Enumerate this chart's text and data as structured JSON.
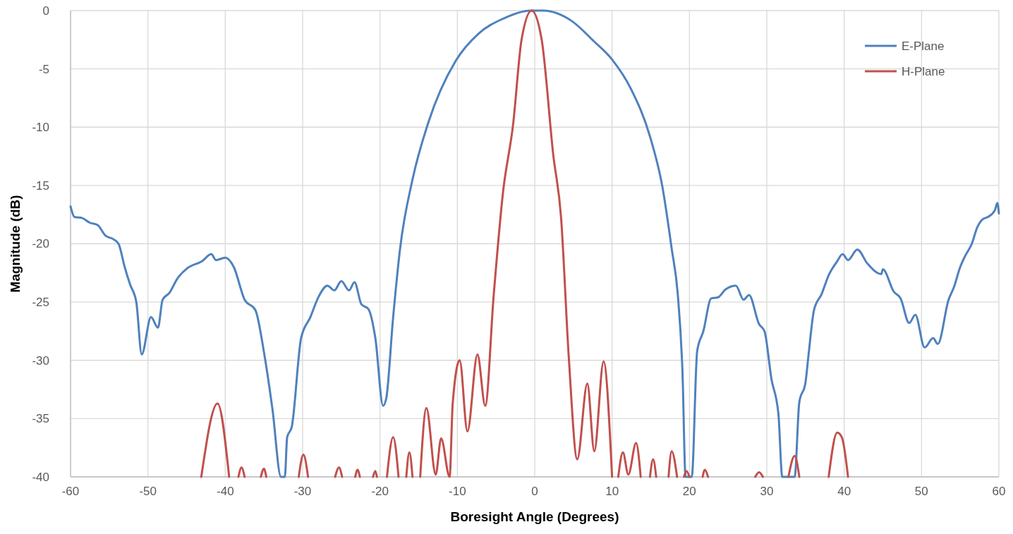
{
  "chart_data": {
    "type": "line",
    "xlabel": "Boresight Angle (Degrees)",
    "ylabel": "Magnitude (dB)",
    "xlim": [
      -60,
      60
    ],
    "xticks": [
      -60,
      -50,
      -40,
      -30,
      -20,
      -10,
      0,
      10,
      20,
      30,
      40,
      50,
      60
    ],
    "ylim": [
      -40,
      0
    ],
    "yticks": [
      -40,
      -35,
      -30,
      -25,
      -20,
      -15,
      -10,
      -5,
      0
    ],
    "grid": true,
    "legend": "top right",
    "marker": "none",
    "line_style": "solid",
    "series": [
      {
        "name": "E-Plane",
        "color": "#4f81bd",
        "x": [
          -60,
          -59.5,
          -58.5,
          -57.5,
          -56.5,
          -55.5,
          -54.5,
          -53.8,
          -53,
          -52.3,
          -51.5,
          -50.8,
          -49.6,
          -48.7,
          -48.1,
          -47.2,
          -46.2,
          -44.9,
          -43,
          -41.8,
          -41.2,
          -40,
          -38.9,
          -37.5,
          -36.1,
          -35,
          -33.9,
          -32.8,
          -32.3,
          -32,
          -31.4,
          -30.2,
          -29,
          -27.9,
          -26.8,
          -25.9,
          -25,
          -24,
          -23.3,
          -22.4,
          -21.5,
          -20.6,
          -19.6,
          -19.2,
          -18.3,
          -17.4,
          -15.8,
          -13.8,
          -10.2,
          -7.3,
          -4.1,
          -0.5,
          1.1,
          4.8,
          7.6,
          10,
          12.5,
          14.9,
          16.5,
          17.7,
          18.5,
          19.1,
          19.5,
          20.3,
          21,
          21.8,
          22.8,
          23.7,
          24.7,
          26,
          27,
          27.7,
          29,
          29.7,
          30.6,
          31.5,
          32,
          33.6,
          34.2,
          35,
          35.4,
          36.1,
          37.1,
          38,
          39.1,
          39.8,
          40.5,
          41.7,
          43,
          44.8,
          45,
          46.4,
          47.3,
          48.4,
          49.2,
          50.4,
          51.5,
          52.1,
          53.5,
          54.2,
          55,
          55.6,
          56.5,
          57.2,
          57.9,
          58.6,
          59.5,
          59.8,
          60
        ],
        "values": [
          -16.8,
          -17.7,
          -17.8,
          -18.2,
          -18.4,
          -19.3,
          -19.6,
          -20,
          -22,
          -23.5,
          -25,
          -29.5,
          -26.3,
          -27.2,
          -24.8,
          -24.2,
          -23,
          -22.1,
          -21.5,
          -20.9,
          -21.4,
          -21.2,
          -22,
          -24.8,
          -25.7,
          -29.3,
          -34.2,
          -40,
          -40,
          -36.6,
          -35.7,
          -28.1,
          -26.3,
          -24.5,
          -23.6,
          -24,
          -23.2,
          -24,
          -23.3,
          -25.2,
          -25.6,
          -28.1,
          -33.9,
          -33.3,
          -26.3,
          -20.4,
          -14.5,
          -9.7,
          -4.3,
          -2,
          -0.7,
          0,
          0,
          -0.9,
          -2.6,
          -4.2,
          -6.8,
          -10.8,
          -15.1,
          -20.4,
          -24.4,
          -31,
          -40,
          -40,
          -29.2,
          -27.5,
          -24.7,
          -24.6,
          -23.9,
          -23.6,
          -24.8,
          -24.4,
          -26.9,
          -27.5,
          -31.6,
          -34.6,
          -40,
          -40,
          -33.6,
          -31.9,
          -29.5,
          -25.7,
          -24.3,
          -22.7,
          -21.5,
          -20.9,
          -21.4,
          -20.5,
          -21.7,
          -22.6,
          -22.2,
          -24.1,
          -24.7,
          -26.8,
          -26.1,
          -28.9,
          -28.1,
          -28.6,
          -24.8,
          -23.7,
          -22,
          -21.1,
          -20,
          -18.6,
          -17.9,
          -17.7,
          -17.1,
          -16.5,
          -17.4
        ]
      },
      {
        "name": "H-Plane",
        "color": "#c0504d",
        "x": [
          -43.1,
          -41,
          -39.5,
          -39,
          -38.3,
          -37.9,
          -37.5,
          -36,
          -35.4,
          -35,
          -34.7,
          -32,
          -30.5,
          -29.9,
          -29.3,
          -27,
          -25.8,
          -25.3,
          -24.9,
          -24,
          -23.2,
          -22.9,
          -22.6,
          -21.5,
          -20.9,
          -20.6,
          -20.4,
          -20,
          -19.1,
          -18.3,
          -17.6,
          -17,
          -16.6,
          -16.2,
          -15.8,
          -15.3,
          -14.8,
          -14,
          -12.8,
          -12.1,
          -11,
          -10.6,
          -9.7,
          -8.7,
          -7.4,
          -6.4,
          -5.3,
          -4.1,
          -2.8,
          -1.7,
          -0.4,
          0.9,
          2.4,
          3.4,
          4.4,
          5.5,
          6.8,
          7.7,
          8.9,
          10,
          10.4,
          10.8,
          11.4,
          12.1,
          13.1,
          13.7,
          14.3,
          14.9,
          15.3,
          15.7,
          16.5,
          17.3,
          17.7,
          18.4,
          18.8,
          19.3,
          19.6,
          20,
          20.8,
          21.7,
          22,
          22.4,
          25,
          28.5,
          29,
          29.5,
          31,
          32.8,
          33.6,
          34.2,
          36,
          38,
          39.1,
          39.7,
          40.5
        ],
        "values": [
          -40,
          -33.7,
          -40,
          null,
          -40,
          -39.2,
          -40,
          null,
          -40,
          -39.3,
          -40,
          null,
          -40,
          -38.1,
          -40,
          null,
          -40,
          -39.2,
          -40,
          null,
          -40,
          -39.4,
          -40,
          null,
          -40,
          -39.5,
          -40,
          null,
          -40,
          -36.6,
          -40,
          null,
          -40,
          -37.9,
          -40,
          null,
          -40,
          -34.1,
          -39.8,
          -36.7,
          -40,
          -33.7,
          -30,
          -36.1,
          -29.5,
          -33.9,
          -24.4,
          -15.6,
          -9.8,
          -2.5,
          0,
          -2.5,
          -12.4,
          -17.7,
          -29.7,
          -38.5,
          -32,
          -37.8,
          -30.1,
          -40,
          null,
          -40,
          -37.9,
          -39.8,
          -37.1,
          -40,
          null,
          -40,
          -38.5,
          -40,
          null,
          -40,
          -37.8,
          -40,
          null,
          -40,
          -39.5,
          -40,
          null,
          -40,
          -39.4,
          -40,
          null,
          -40,
          -39.6,
          -40,
          null,
          -40,
          -38.2,
          -40,
          null,
          -40,
          -36.2,
          -36.6,
          -40
        ]
      }
    ]
  }
}
